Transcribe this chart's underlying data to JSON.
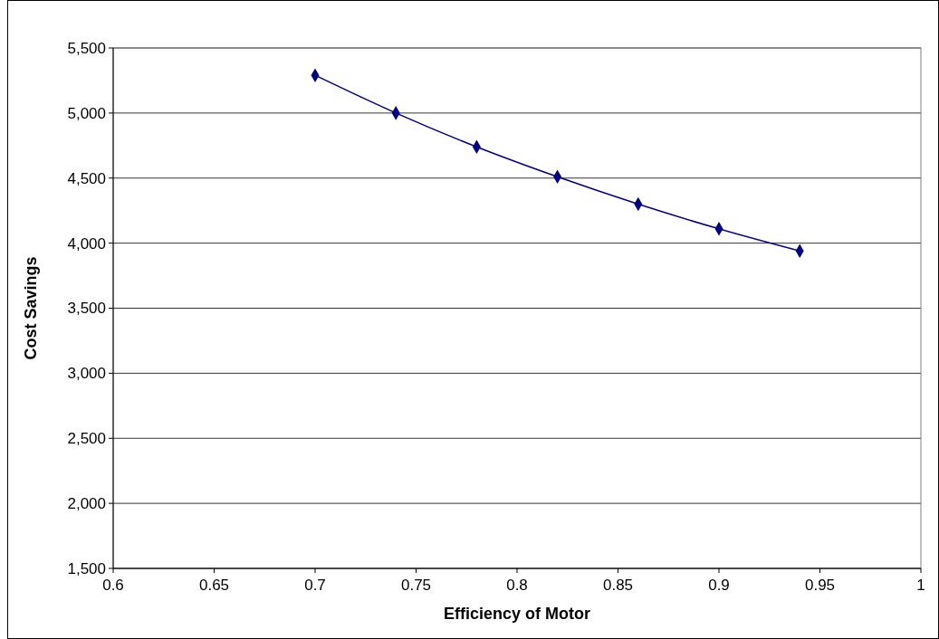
{
  "chart_data": {
    "type": "line",
    "xlabel": "Efficiency of Motor",
    "ylabel": "Cost Savings",
    "x": [
      0.7,
      0.74,
      0.78,
      0.82,
      0.86,
      0.9,
      0.94
    ],
    "series": [
      {
        "color": "#000080",
        "values": [
          5290,
          5000,
          4740,
          4510,
          4300,
          4110,
          3940
        ]
      }
    ],
    "xlim": [
      0.6,
      1
    ],
    "xticks": [
      0.6,
      0.65,
      0.7,
      0.75,
      0.8,
      0.85,
      0.9,
      0.95,
      1
    ],
    "ylim": [
      1500,
      5500
    ],
    "yticks": [
      {
        "value": 1500,
        "label": "1,500"
      },
      {
        "value": 2000,
        "label": "2,000"
      },
      {
        "value": 2500,
        "label": "2,500"
      },
      {
        "value": 3000,
        "label": "3,000"
      },
      {
        "value": 3500,
        "label": "3,500"
      },
      {
        "value": 4000,
        "label": "4,000"
      },
      {
        "value": 4500,
        "label": "4,500"
      },
      {
        "value": 5000,
        "label": "5,000"
      },
      {
        "value": 5500,
        "label": "5,500"
      }
    ],
    "grid": "y",
    "marker": "diamond",
    "line_style": "solid"
  }
}
